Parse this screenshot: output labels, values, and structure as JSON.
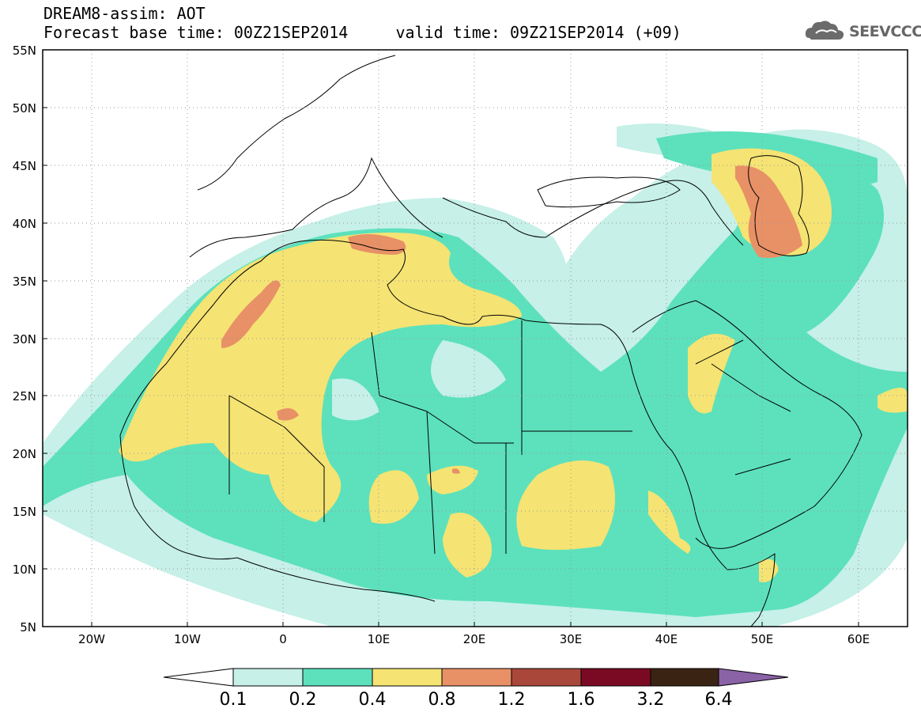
{
  "header": {
    "line1": "DREAM8-assim: AOT",
    "line2": "Forecast base time: 00Z21SEP2014     valid time: 09Z21SEP2014 (+09)"
  },
  "logo": {
    "icon": "cloud-icon",
    "text": "SEEVCCC",
    "color": "#666666"
  },
  "map": {
    "lat_labels": [
      "55N",
      "50N",
      "45N",
      "40N",
      "35N",
      "30N",
      "25N",
      "20N",
      "15N",
      "10N",
      "5N"
    ],
    "lon_labels": [
      "20W",
      "10W",
      "0",
      "10E",
      "20E",
      "30E",
      "40E",
      "50E",
      "60E"
    ],
    "lon_range": [
      -25,
      65
    ],
    "lat_range": [
      5,
      55
    ],
    "gridlines": "dotted"
  },
  "colorbar": {
    "labels": [
      "0.1",
      "0.2",
      "0.4",
      "0.8",
      "1.2",
      "1.6",
      "3.2",
      "6.4"
    ],
    "colors": [
      "#ffffff",
      "#c6f0e8",
      "#5ce1bc",
      "#f5e373",
      "#e89066",
      "#a9473b",
      "#7a0a23",
      "#3b2313",
      "#8a62a6"
    ]
  }
}
